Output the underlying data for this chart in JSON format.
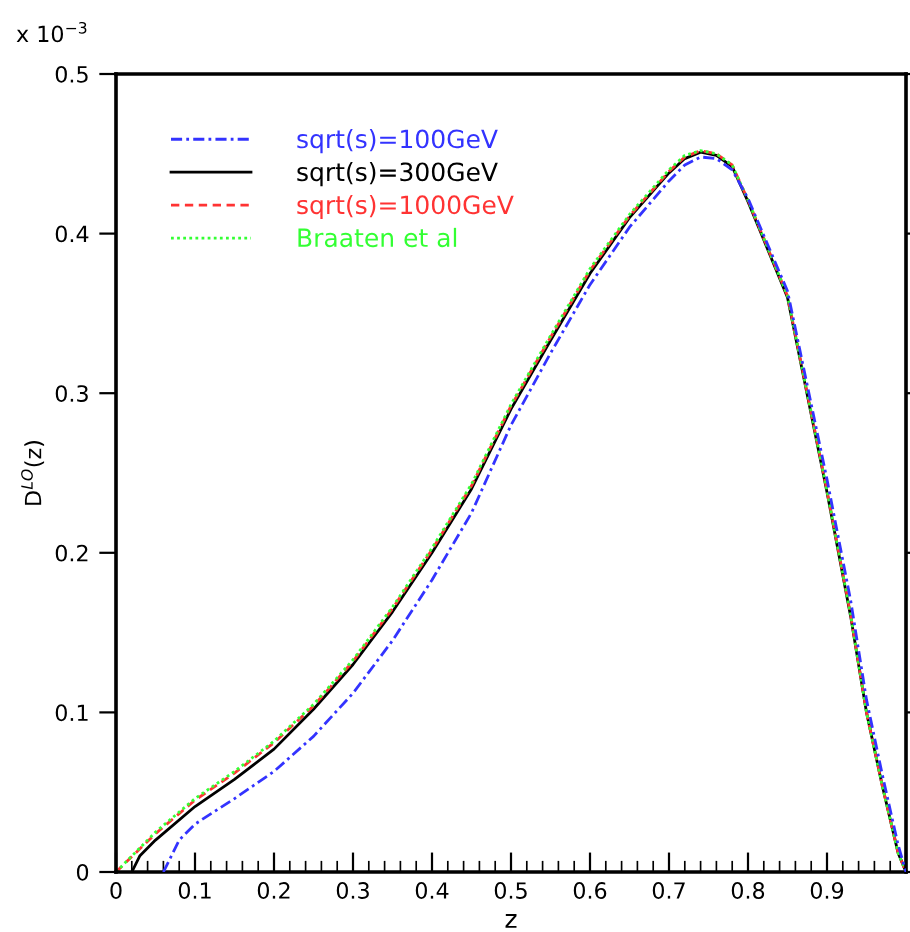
{
  "chart_data": {
    "type": "line",
    "xlabel": "z",
    "ylabel": "D$^{LO}$(z)",
    "annotations": [
      "x 10$^{−3}$"
    ],
    "xlim": [
      0,
      1
    ],
    "ylim": [
      0,
      0.5
    ],
    "xticks": [
      0,
      0.1,
      0.2,
      0.3,
      0.4,
      0.5,
      0.6,
      0.7,
      0.8,
      0.9,
      {
        "value": 1,
        "label": null
      }
    ],
    "yticks": [
      0,
      0.1,
      0.2,
      0.3,
      0.4,
      0.5
    ],
    "grid": false,
    "legend": "top left",
    "series": [
      {
        "name": "sqrt(s)=100GeV",
        "color": "#3333ff",
        "line_style": "dashdot",
        "x": [
          0.06,
          0.08,
          0.1,
          0.15,
          0.2,
          0.25,
          0.3,
          0.35,
          0.4,
          0.45,
          0.5,
          0.55,
          0.6,
          0.65,
          0.7,
          0.72,
          0.74,
          0.76,
          0.78,
          0.8,
          0.85,
          0.9,
          0.93,
          0.95,
          0.97,
          0.99,
          1.0
        ],
        "values": [
          0,
          0.02,
          0.03,
          0.046,
          0.063,
          0.085,
          0.112,
          0.145,
          0.183,
          0.225,
          0.28,
          0.325,
          0.368,
          0.404,
          0.433,
          0.443,
          0.448,
          0.447,
          0.44,
          0.422,
          0.364,
          0.246,
          0.17,
          0.108,
          0.061,
          0.017,
          0
        ]
      },
      {
        "name": "sqrt(s)=300GeV",
        "color": "#000000",
        "line_style": "solid",
        "x": [
          0.02,
          0.03,
          0.05,
          0.1,
          0.15,
          0.2,
          0.25,
          0.3,
          0.35,
          0.4,
          0.45,
          0.5,
          0.55,
          0.6,
          0.65,
          0.7,
          0.72,
          0.74,
          0.76,
          0.78,
          0.8,
          0.85,
          0.9,
          0.93,
          0.95,
          0.97,
          0.99,
          1.0
        ],
        "values": [
          0,
          0.01,
          0.02,
          0.041,
          0.058,
          0.077,
          0.102,
          0.13,
          0.163,
          0.2,
          0.24,
          0.29,
          0.333,
          0.375,
          0.41,
          0.438,
          0.447,
          0.451,
          0.449,
          0.442,
          0.42,
          0.36,
          0.238,
          0.16,
          0.1,
          0.054,
          0.012,
          0
        ]
      },
      {
        "name": "sqrt(s)=1000GeV",
        "color": "#ff3333",
        "line_style": "dashed",
        "x": [
          0,
          0.05,
          0.1,
          0.15,
          0.2,
          0.25,
          0.3,
          0.35,
          0.4,
          0.45,
          0.5,
          0.55,
          0.6,
          0.65,
          0.7,
          0.72,
          0.74,
          0.76,
          0.78,
          0.8,
          0.85,
          0.9,
          0.93,
          0.95,
          0.97,
          0.99,
          1.0
        ],
        "values": [
          0,
          0.024,
          0.045,
          0.062,
          0.081,
          0.104,
          0.132,
          0.165,
          0.202,
          0.242,
          0.292,
          0.335,
          0.377,
          0.411,
          0.439,
          0.448,
          0.452,
          0.45,
          0.443,
          0.421,
          0.361,
          0.239,
          0.161,
          0.1,
          0.054,
          0.012,
          0
        ]
      },
      {
        "name": "Braaten et al",
        "color": "#33ff33",
        "line_style": "dotted",
        "x": [
          0,
          0.05,
          0.1,
          0.15,
          0.2,
          0.25,
          0.3,
          0.35,
          0.4,
          0.45,
          0.5,
          0.55,
          0.6,
          0.65,
          0.7,
          0.72,
          0.74,
          0.76,
          0.78,
          0.8,
          0.85,
          0.9,
          0.93,
          0.95,
          0.97,
          0.99,
          1.0
        ],
        "values": [
          0,
          0.025,
          0.046,
          0.063,
          0.082,
          0.105,
          0.133,
          0.166,
          0.203,
          0.243,
          0.293,
          0.336,
          0.378,
          0.412,
          0.44,
          0.449,
          0.452,
          0.45,
          0.443,
          0.421,
          0.361,
          0.239,
          0.161,
          0.1,
          0.054,
          0.012,
          0
        ]
      }
    ]
  }
}
